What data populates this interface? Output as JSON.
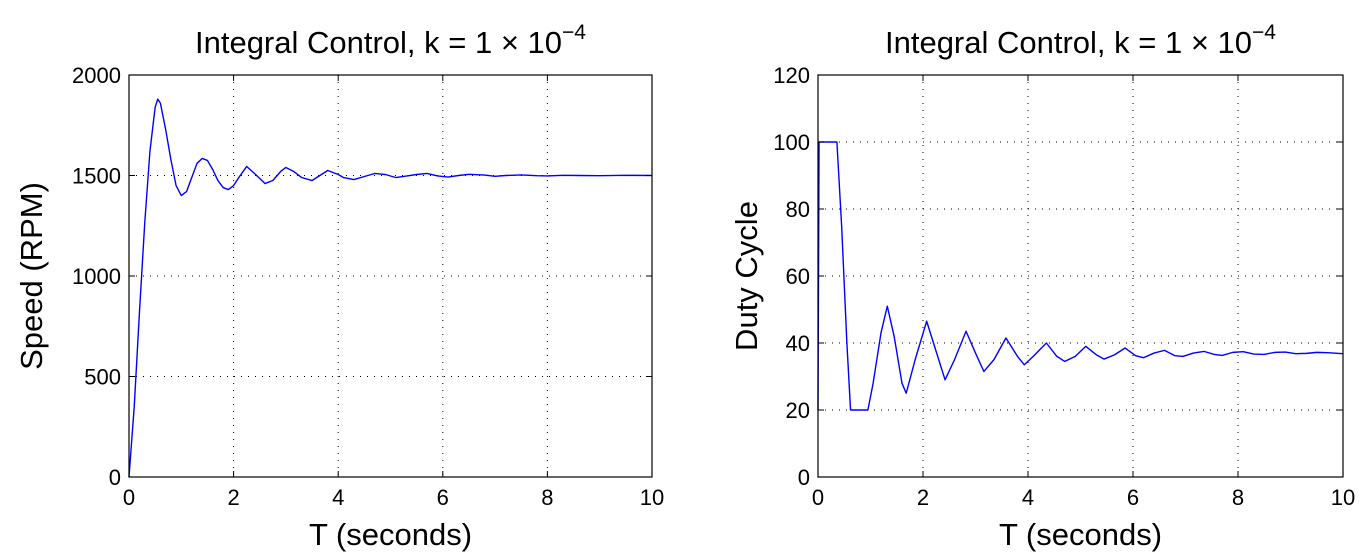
{
  "chart_data": [
    {
      "type": "line",
      "title": "Integral Control, k = 1 × 10",
      "title_exponent": "−4",
      "xlabel": "T (seconds)",
      "ylabel": "Speed (RPM)",
      "xlim": [
        0,
        10
      ],
      "ylim": [
        0,
        2000
      ],
      "xticks": [
        0,
        2,
        4,
        6,
        8,
        10
      ],
      "yticks": [
        0,
        500,
        1000,
        1500,
        2000
      ],
      "xtick_labels": [
        "0",
        "2",
        "4",
        "6",
        "8",
        "10"
      ],
      "ytick_labels": [
        "0",
        "500",
        "1000",
        "1500",
        "2000"
      ],
      "grid": true,
      "color": "#0000ff",
      "x": [
        0,
        0.1,
        0.2,
        0.3,
        0.4,
        0.5,
        0.55,
        0.6,
        0.7,
        0.8,
        0.9,
        1.0,
        1.1,
        1.2,
        1.3,
        1.4,
        1.5,
        1.6,
        1.7,
        1.8,
        1.9,
        2.0,
        2.1,
        2.25,
        2.4,
        2.6,
        2.75,
        2.9,
        3.0,
        3.15,
        3.3,
        3.5,
        3.65,
        3.8,
        4.0,
        4.1,
        4.3,
        4.5,
        4.7,
        4.9,
        5.1,
        5.3,
        5.5,
        5.7,
        5.9,
        6.1,
        6.3,
        6.5,
        6.8,
        7.0,
        7.2,
        7.5,
        7.8,
        8.0,
        8.3,
        8.6,
        9.0,
        9.5,
        10.0
      ],
      "y": [
        0,
        350,
        820,
        1260,
        1620,
        1840,
        1880,
        1860,
        1730,
        1580,
        1450,
        1400,
        1420,
        1490,
        1560,
        1585,
        1575,
        1530,
        1475,
        1440,
        1430,
        1450,
        1490,
        1545,
        1510,
        1460,
        1475,
        1520,
        1540,
        1520,
        1490,
        1475,
        1500,
        1525,
        1505,
        1490,
        1480,
        1495,
        1510,
        1505,
        1490,
        1497,
        1505,
        1510,
        1498,
        1492,
        1500,
        1506,
        1502,
        1496,
        1500,
        1503,
        1499,
        1498,
        1501,
        1500,
        1499,
        1501,
        1500
      ]
    },
    {
      "type": "line",
      "title": "Integral Control, k = 1 × 10",
      "title_exponent": "−4",
      "xlabel": "T (seconds)",
      "ylabel": "Duty Cycle",
      "xlim": [
        0,
        10
      ],
      "ylim": [
        0,
        120
      ],
      "xticks": [
        0,
        2,
        4,
        6,
        8,
        10
      ],
      "yticks": [
        0,
        20,
        40,
        60,
        80,
        100,
        120
      ],
      "xtick_labels": [
        "0",
        "2",
        "4",
        "6",
        "8",
        "10"
      ],
      "ytick_labels": [
        "0",
        "20",
        "40",
        "60",
        "80",
        "100",
        "120"
      ],
      "grid": true,
      "color": "#0000ff",
      "x": [
        0,
        0.02,
        0.05,
        0.36,
        0.45,
        0.55,
        0.62,
        0.95,
        1.05,
        1.2,
        1.32,
        1.45,
        1.6,
        1.68,
        1.85,
        2.07,
        2.3,
        2.42,
        2.6,
        2.82,
        3.0,
        3.16,
        3.35,
        3.58,
        3.8,
        3.93,
        4.1,
        4.35,
        4.55,
        4.7,
        4.9,
        5.1,
        5.3,
        5.45,
        5.65,
        5.85,
        6.05,
        6.2,
        6.4,
        6.6,
        6.8,
        6.95,
        7.15,
        7.35,
        7.55,
        7.7,
        7.9,
        8.1,
        8.3,
        8.5,
        8.7,
        8.9,
        9.1,
        9.3,
        9.5,
        9.7,
        10.0
      ],
      "y": [
        20,
        100,
        100,
        100,
        75,
        40,
        20,
        20,
        28,
        43,
        51,
        42,
        28,
        25,
        35,
        46.5,
        35,
        29,
        35,
        43.5,
        37,
        31.5,
        35,
        41.5,
        36,
        33.5,
        36,
        40,
        36,
        34.5,
        36,
        39,
        36.5,
        35.2,
        36.5,
        38.5,
        36.2,
        35.6,
        37,
        37.8,
        36.2,
        36,
        37,
        37.5,
        36.6,
        36.3,
        37.2,
        37.4,
        36.7,
        36.6,
        37.2,
        37.3,
        36.8,
        36.9,
        37.2,
        37.1,
        36.8
      ]
    }
  ]
}
